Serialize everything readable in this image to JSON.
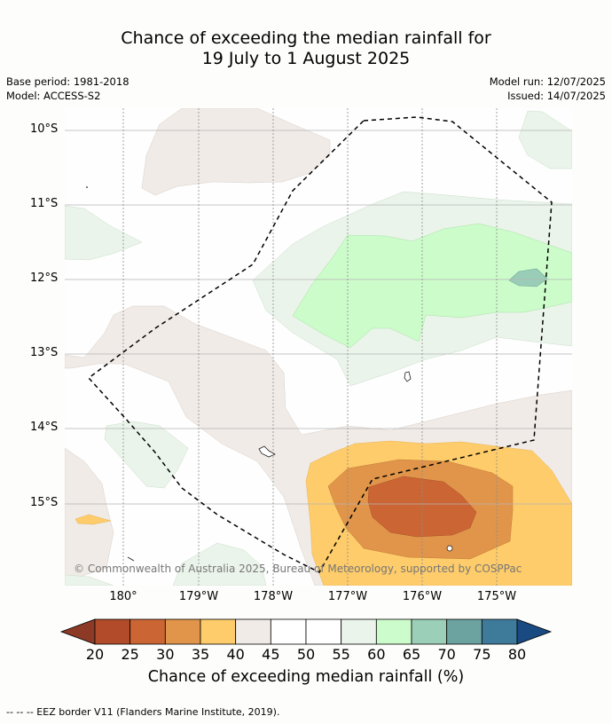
{
  "title": {
    "line1": "Chance of exceeding the median rainfall for",
    "line2": "19 July to 1 August 2025"
  },
  "meta": {
    "base_period": "Base period: 1981-2018",
    "model": "Model: ACCESS-S2",
    "model_run": "Model run: 12/07/2025",
    "issued": "Issued: 14/07/2025"
  },
  "map": {
    "lat_labels": [
      "10°S",
      "11°S",
      "12°S",
      "13°S",
      "14°S",
      "15°S"
    ],
    "lon_labels": [
      "180°",
      "179°W",
      "178°W",
      "177°W",
      "176°W",
      "175°W"
    ],
    "copyright": "© Commonwealth of Australia 2025, Bureau of Meteorology, supported by COSPPac"
  },
  "colorbar": {
    "ticks": [
      "20",
      "25",
      "30",
      "35",
      "40",
      "45",
      "50",
      "55",
      "60",
      "65",
      "70",
      "75",
      "80"
    ],
    "colors": [
      "#8c3a26",
      "#b24b2a",
      "#cc6534",
      "#e0954a",
      "#fecc6a",
      "#f0ebe6",
      "#ffffff",
      "#ffffff",
      "#eaf4ea",
      "#ccfccc",
      "#9bcfb8",
      "#6ca2a0",
      "#3e7a9a",
      "#1a4a82"
    ],
    "title": "Chance of exceeding median rainfall (%)"
  },
  "legend": {
    "text": "--  --  -- EEZ border V11 (Flanders Marine Institute, 2019)."
  }
}
